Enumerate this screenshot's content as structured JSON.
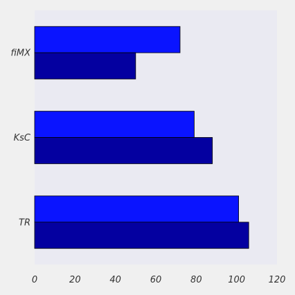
{
  "chart_data": {
    "type": "bar",
    "orientation": "horizontal",
    "categories": [
      "fiMX",
      "KsC",
      "TR"
    ],
    "series": [
      {
        "values": [
          72,
          79,
          101
        ],
        "color": "#0a14ff"
      },
      {
        "values": [
          50,
          88,
          106
        ],
        "color": "#0400a0"
      }
    ],
    "xlim": [
      0,
      120
    ],
    "xticks": [
      "0",
      "20",
      "40",
      "60",
      "80",
      "100",
      "120"
    ],
    "title": "",
    "xlabel": "",
    "ylabel": "",
    "grid": false,
    "legend": "none",
    "plot_background": "#eaeaf2",
    "figure_background": "#f0f0f0"
  }
}
